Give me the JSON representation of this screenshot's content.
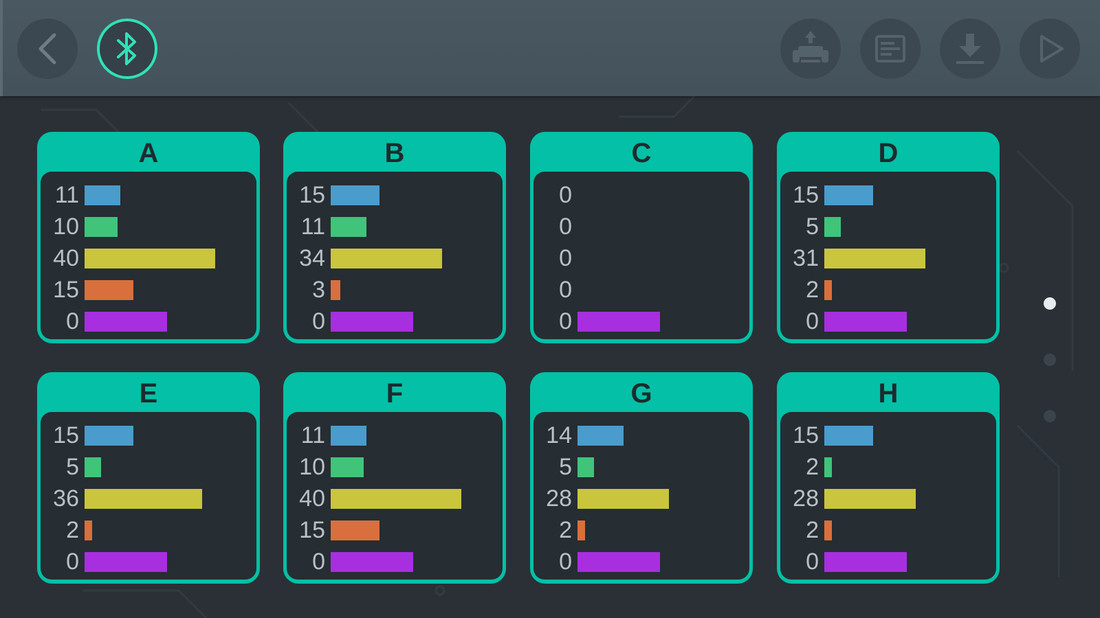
{
  "toolbar": {
    "back_icon": "chevron-left-icon",
    "bluetooth_icon": "bluetooth-icon",
    "right_icons": [
      "robot-car-icon",
      "document-icon",
      "download-icon",
      "play-icon"
    ]
  },
  "colors": {
    "accent": "#04c0a6",
    "bluetooth_ring": "#2fe2b6",
    "bar_colors": [
      "#4a9ccc",
      "#3fc47a",
      "#c9c53d",
      "#d96f3d",
      "#a72fe0"
    ]
  },
  "scale_max": 40,
  "cards": [
    {
      "label": "A",
      "values": [
        11,
        10,
        40,
        15,
        0
      ]
    },
    {
      "label": "B",
      "values": [
        15,
        11,
        34,
        3,
        0
      ]
    },
    {
      "label": "C",
      "values": [
        0,
        0,
        0,
        0,
        0
      ]
    },
    {
      "label": "D",
      "values": [
        15,
        5,
        31,
        2,
        0
      ]
    },
    {
      "label": "E",
      "values": [
        15,
        5,
        36,
        2,
        0
      ]
    },
    {
      "label": "F",
      "values": [
        11,
        10,
        40,
        15,
        0
      ]
    },
    {
      "label": "G",
      "values": [
        14,
        5,
        28,
        2,
        0
      ]
    },
    {
      "label": "H",
      "values": [
        15,
        2,
        28,
        2,
        0
      ]
    }
  ],
  "pagination": {
    "pages": 3,
    "active": 0
  }
}
